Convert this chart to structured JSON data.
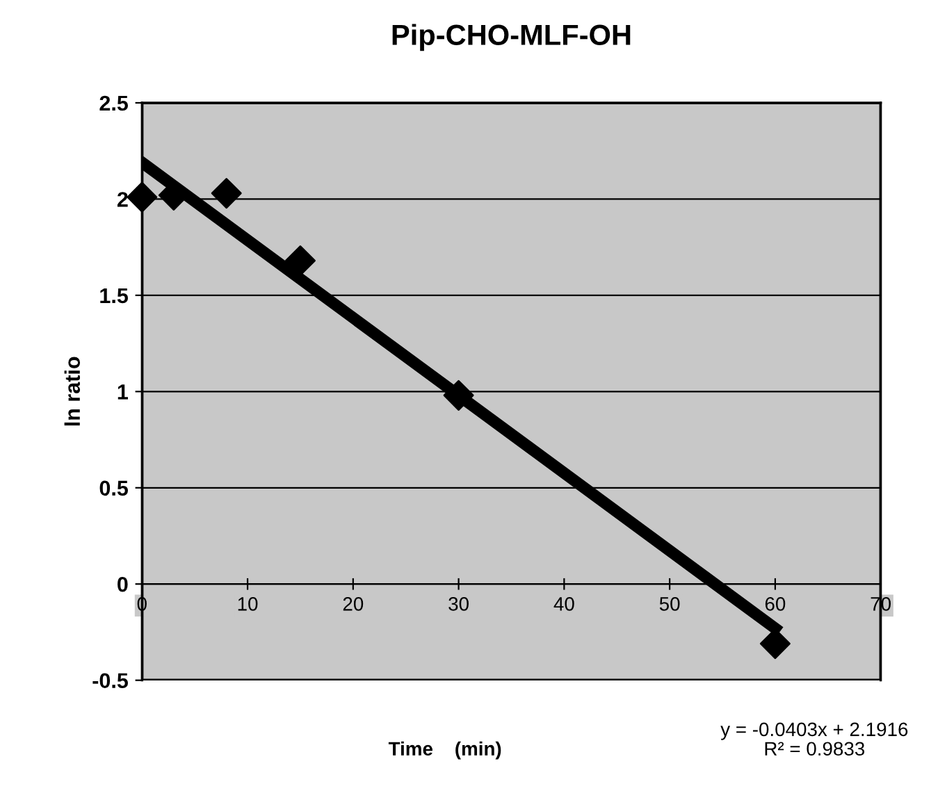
{
  "chart_data": {
    "type": "scatter",
    "title": "Pip-CHO-MLF-OH",
    "xlabel": "Time    (min)",
    "ylabel": "ln ratio",
    "x": [
      0,
      3,
      8,
      15,
      30,
      60
    ],
    "series": [
      {
        "color": "#000000",
        "marker": "diamond",
        "values": [
          2.01,
          2.02,
          2.03,
          1.68,
          0.98,
          -0.31
        ]
      },
      {
        "type": "line",
        "color": "#000000",
        "x": [
          0,
          60
        ],
        "values": [
          2.19,
          -0.23
        ],
        "marker": "none",
        "line_style": "solid"
      }
    ],
    "annotations": [
      "y = -0.0403x + 2.1916\nR² = 0.9833"
    ],
    "xlim": [
      0,
      70
    ],
    "xticks": [
      0,
      10,
      20,
      30,
      40,
      50,
      60,
      70
    ],
    "ylim": [
      -0.5,
      2.5
    ],
    "yticks": [
      -0.5,
      0,
      0.5,
      1,
      1.5,
      2,
      2.5
    ],
    "grid": "y",
    "legend": false
  }
}
